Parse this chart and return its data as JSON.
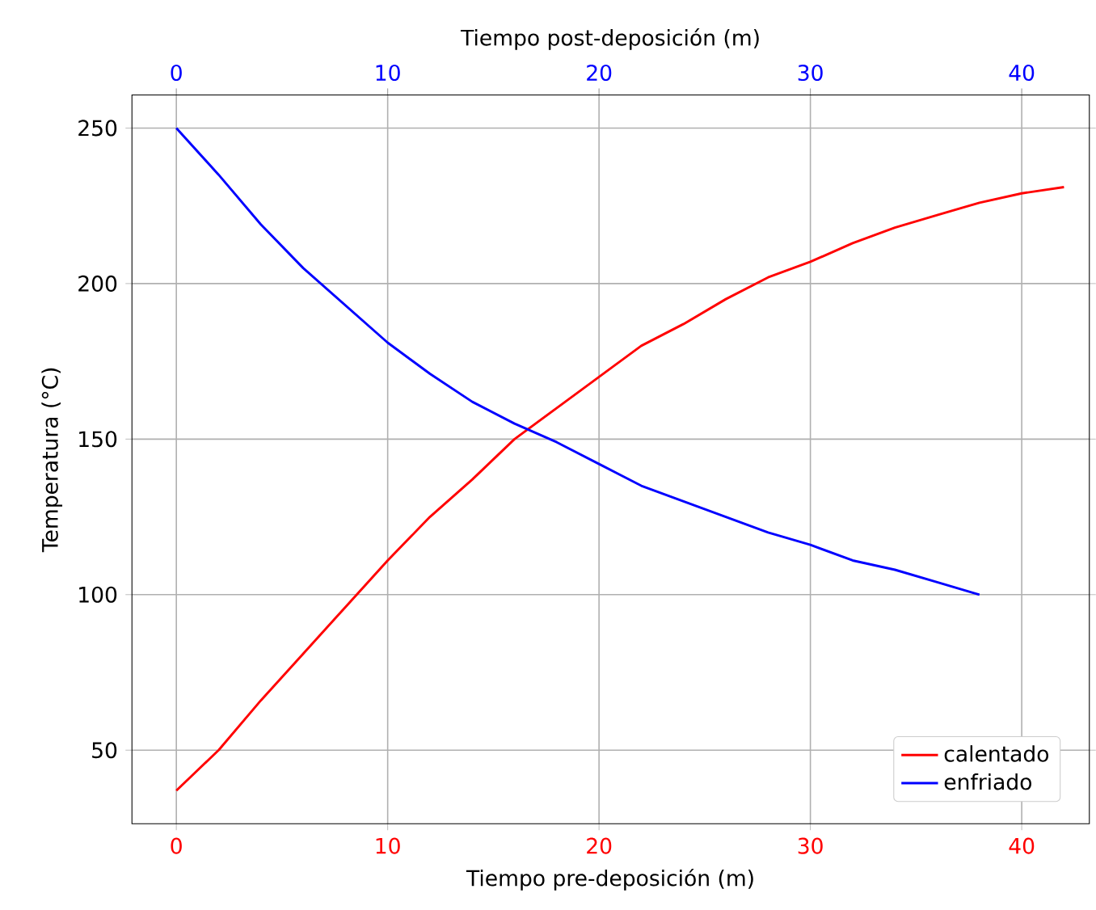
{
  "chart_data": {
    "type": "line",
    "xlabel": "Tiempo pre-deposición (m)",
    "x2label": "Tiempo post-deposición (m)",
    "ylabel": "Temperatura (°C)",
    "xlim": [
      -2.1,
      43.2
    ],
    "xticks": [
      0,
      10,
      20,
      30,
      40
    ],
    "x2lim": [
      -2.1,
      43.2
    ],
    "x2ticks": [
      0,
      10,
      20,
      30,
      40
    ],
    "ylim": [
      26.35,
      260.65
    ],
    "yticks": [
      50,
      100,
      150,
      200,
      250
    ],
    "grid": true,
    "legend": "bottom right",
    "series": [
      {
        "name": "calentado",
        "color": "#ff0000",
        "x": [
          0,
          2,
          4,
          6,
          8,
          10,
          12,
          14,
          16,
          18,
          20,
          22,
          24,
          26,
          28,
          30,
          32,
          34,
          36,
          38,
          40,
          42
        ],
        "values": [
          37,
          50,
          66,
          81,
          96,
          111,
          125,
          137,
          150,
          160,
          170,
          180,
          187,
          195,
          202,
          207,
          213,
          218,
          222,
          226,
          229,
          231
        ]
      },
      {
        "name": "enfriado",
        "color": "#0000ff",
        "axis": "x2",
        "x": [
          0,
          2,
          4,
          6,
          8,
          10,
          12,
          14,
          16,
          18,
          20,
          22,
          24,
          26,
          28,
          30,
          32,
          34,
          36,
          38
        ],
        "values": [
          250,
          235,
          219,
          205,
          193,
          181,
          171,
          162,
          155,
          149,
          142,
          135,
          130,
          125,
          120,
          116,
          111,
          108,
          104,
          100
        ]
      }
    ]
  }
}
